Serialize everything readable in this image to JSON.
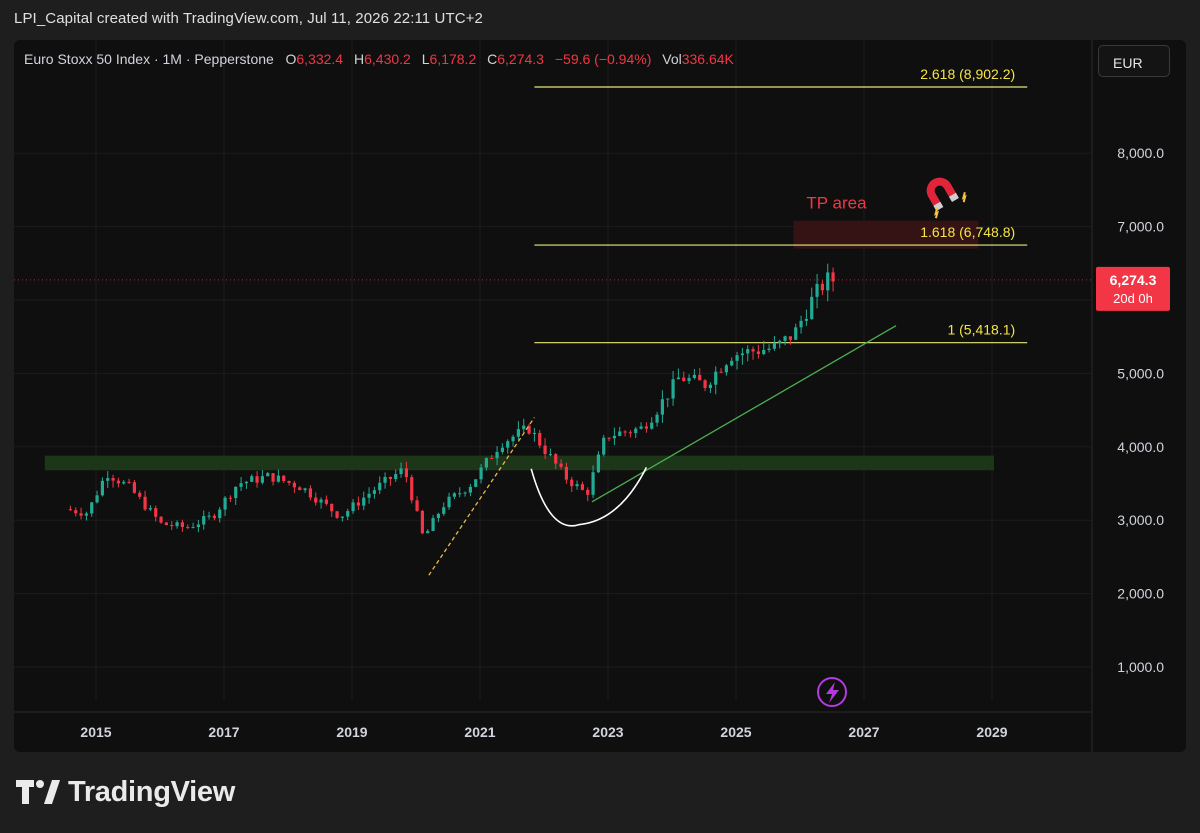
{
  "header": {
    "caption": "LPI_Capital created with TradingView.com, Jul 11, 2026 22:11 UTC+2"
  },
  "legend": {
    "symbol": "Euro Stoxx 50 Index · 1M · Pepperstone",
    "open_label": "O",
    "open": "6,332.4",
    "high_label": "H",
    "high": "6,430.2",
    "low_label": "L",
    "low": "6,178.2",
    "close_label": "C",
    "close": "6,274.3",
    "change": "−59.6 (−0.94%)",
    "vol_label": "Vol",
    "vol": "336.64K"
  },
  "currency": "EUR",
  "footer": {
    "brand": "TradingView"
  },
  "colors": {
    "background": "#0f0f0f",
    "up": "#22ab94",
    "down": "#f23645",
    "fib_line": "#e8e87a",
    "fib_text": "#f5e642",
    "support_zone": "#1f3a1a",
    "tp_zone": "#3a1416",
    "trendline": "#4caf50",
    "price_tag": "#f23645"
  },
  "chart_data": {
    "type": "candlestick",
    "timeframe": "1M",
    "xlim": [
      2014.0,
      2030.0
    ],
    "ylim": [
      0,
      9200
    ],
    "y_ticks": [
      1000,
      2000,
      3000,
      4000,
      5000,
      6000,
      7000,
      8000
    ],
    "y_tick_labels": [
      "1,000.0",
      "2,000.0",
      "3,000.0",
      "4,000.0",
      "5,000.0",
      "6,000.0",
      "7,000.0",
      "8,000.0"
    ],
    "x_ticks": [
      2015,
      2017,
      2019,
      2021,
      2023,
      2025,
      2027,
      2029
    ],
    "x_tick_labels": [
      "2015",
      "2017",
      "2019",
      "2021",
      "2023",
      "2025",
      "2027",
      "2029"
    ],
    "grid": true,
    "candle_anchors": [
      [
        2014.6,
        3150
      ],
      [
        2014.95,
        3100
      ],
      [
        2015.25,
        3650
      ],
      [
        2015.6,
        3450
      ],
      [
        2016.1,
        2950
      ],
      [
        2016.5,
        2900
      ],
      [
        2016.9,
        3050
      ],
      [
        2017.3,
        3500
      ],
      [
        2017.8,
        3600
      ],
      [
        2018.3,
        3450
      ],
      [
        2018.9,
        3050
      ],
      [
        2019.4,
        3400
      ],
      [
        2019.9,
        3700
      ],
      [
        2020.2,
        2750
      ],
      [
        2020.5,
        3200
      ],
      [
        2020.95,
        3500
      ],
      [
        2021.4,
        4050
      ],
      [
        2021.85,
        4250
      ],
      [
        2022.4,
        3600
      ],
      [
        2022.75,
        3350
      ],
      [
        2023.05,
        4150
      ],
      [
        2023.6,
        4250
      ],
      [
        2023.8,
        4450
      ],
      [
        2024.2,
        4950
      ],
      [
        2024.6,
        4850
      ],
      [
        2025.0,
        5250
      ],
      [
        2025.3,
        5300
      ],
      [
        2025.7,
        5350
      ],
      [
        2026.0,
        5550
      ],
      [
        2026.3,
        6050
      ],
      [
        2026.5,
        6274
      ]
    ],
    "last_price": {
      "label": "6,274.3",
      "value": 6274.3,
      "countdown": "20d 0h"
    },
    "fibonacci": [
      {
        "label": "2.618 (8,902.2)",
        "value": 8902.2
      },
      {
        "label": "1.618 (6,748.8)",
        "value": 6748.8
      },
      {
        "label": "1 (5,418.1)",
        "value": 5418.1
      }
    ],
    "fib_start_x": 2021.85,
    "fib_end_x": 2029.55,
    "support_zone": {
      "from_x": 2014.2,
      "to_x": 2030.0,
      "low": 3680,
      "high": 3880
    },
    "tp_zone": {
      "label": "TP area",
      "from_x": 2021.85,
      "to_x": 2030.0,
      "low": 6700,
      "high": 7080
    },
    "trendline": {
      "from": [
        2022.75,
        3250
      ],
      "to": [
        2027.5,
        5650
      ]
    },
    "impulse_line": {
      "from": [
        2020.2,
        2250
      ],
      "to": [
        2021.85,
        4400
      ]
    },
    "cup_arc": {
      "start": [
        2021.8,
        3700
      ],
      "bottom": [
        2022.4,
        3050
      ],
      "end": [
        2023.6,
        3720
      ]
    }
  }
}
